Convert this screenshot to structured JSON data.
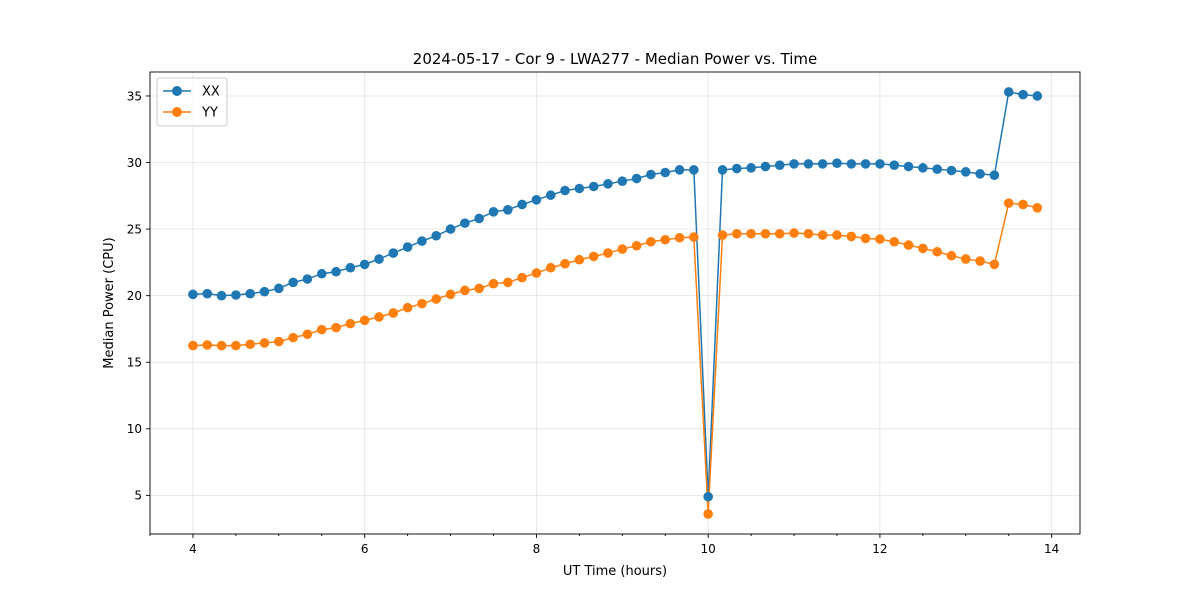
{
  "chart_data": {
    "type": "line",
    "title": "2024-05-17 - Cor 9 - LWA277 - Median Power vs. Time",
    "xlabel": "UT Time (hours)",
    "ylabel": "Median Power (CPU)",
    "xlim": [
      3.5,
      14.33
    ],
    "ylim": [
      2.1,
      36.8
    ],
    "xticks": [
      4,
      6,
      8,
      10,
      12,
      14
    ],
    "yticks": [
      5,
      10,
      15,
      20,
      25,
      30,
      35
    ],
    "grid": true,
    "legend_position": "upper-left",
    "x": [
      4.0,
      4.167,
      4.333,
      4.5,
      4.667,
      4.833,
      5.0,
      5.167,
      5.333,
      5.5,
      5.667,
      5.833,
      6.0,
      6.167,
      6.333,
      6.5,
      6.667,
      6.833,
      7.0,
      7.167,
      7.333,
      7.5,
      7.667,
      7.833,
      8.0,
      8.167,
      8.333,
      8.5,
      8.667,
      8.833,
      9.0,
      9.167,
      9.333,
      9.5,
      9.667,
      9.833,
      10.0,
      10.167,
      10.333,
      10.5,
      10.667,
      10.833,
      11.0,
      11.167,
      11.333,
      11.5,
      11.667,
      11.833,
      12.0,
      12.167,
      12.333,
      12.5,
      12.667,
      12.833,
      13.0,
      13.167,
      13.333,
      13.5,
      13.667,
      13.833
    ],
    "series": [
      {
        "name": "XX",
        "color": "#1f77b4",
        "values": [
          20.1,
          20.15,
          20.0,
          20.05,
          20.15,
          20.3,
          20.55,
          21.0,
          21.25,
          21.65,
          21.8,
          22.1,
          22.35,
          22.75,
          23.2,
          23.65,
          24.1,
          24.5,
          25.0,
          25.45,
          25.8,
          26.3,
          26.45,
          26.85,
          27.2,
          27.55,
          27.9,
          28.05,
          28.2,
          28.4,
          28.6,
          28.8,
          29.1,
          29.25,
          29.45,
          29.45,
          4.9,
          29.45,
          29.55,
          29.6,
          29.7,
          29.8,
          29.9,
          29.9,
          29.9,
          29.95,
          29.9,
          29.9,
          29.9,
          29.8,
          29.7,
          29.6,
          29.5,
          29.4,
          29.3,
          29.15,
          29.05,
          35.3,
          35.1,
          35.0
        ]
      },
      {
        "name": "YY",
        "color": "#ff7f0e",
        "values": [
          16.25,
          16.3,
          16.25,
          16.25,
          16.35,
          16.45,
          16.55,
          16.85,
          17.1,
          17.45,
          17.6,
          17.9,
          18.15,
          18.4,
          18.7,
          19.1,
          19.4,
          19.75,
          20.1,
          20.4,
          20.55,
          20.9,
          21.0,
          21.35,
          21.7,
          22.1,
          22.4,
          22.7,
          22.95,
          23.2,
          23.5,
          23.75,
          24.05,
          24.2,
          24.35,
          24.4,
          3.6,
          24.55,
          24.65,
          24.65,
          24.65,
          24.65,
          24.7,
          24.65,
          24.55,
          24.55,
          24.45,
          24.3,
          24.25,
          24.05,
          23.8,
          23.55,
          23.3,
          23.0,
          22.75,
          22.6,
          22.35,
          26.95,
          26.85,
          26.6
        ]
      }
    ]
  }
}
